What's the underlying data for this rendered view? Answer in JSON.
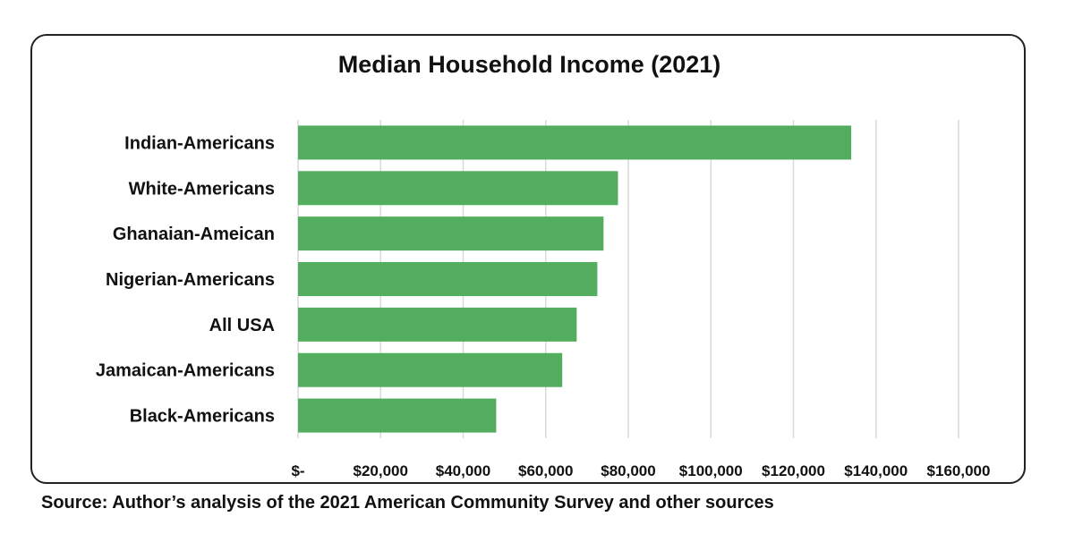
{
  "chart_data": {
    "type": "bar",
    "orientation": "horizontal",
    "title": "Median Household Income (2021)",
    "categories": [
      "Indian-Americans",
      "White-Americans",
      "Ghanaian-Ameican",
      "Nigerian-Americans",
      "All USA",
      "Jamaican-Americans",
      "Black-Americans"
    ],
    "values": [
      134000,
      77500,
      74000,
      72500,
      67500,
      64000,
      48000
    ],
    "xlim": [
      0,
      160000
    ],
    "x_ticks": [
      0,
      20000,
      40000,
      60000,
      80000,
      100000,
      120000,
      140000,
      160000
    ],
    "x_tick_labels": [
      "$-",
      "$20,000",
      "$40,000",
      "$60,000",
      "$80,000",
      "$100,000",
      "$120,000",
      "$140,000",
      "$160,000"
    ],
    "grid": true,
    "legend": "none",
    "bar_color": "#52ae5e",
    "grid_color": "#d9d9d9"
  },
  "source": "Source: Author’s analysis of the 2021 American Community Survey and other sources"
}
